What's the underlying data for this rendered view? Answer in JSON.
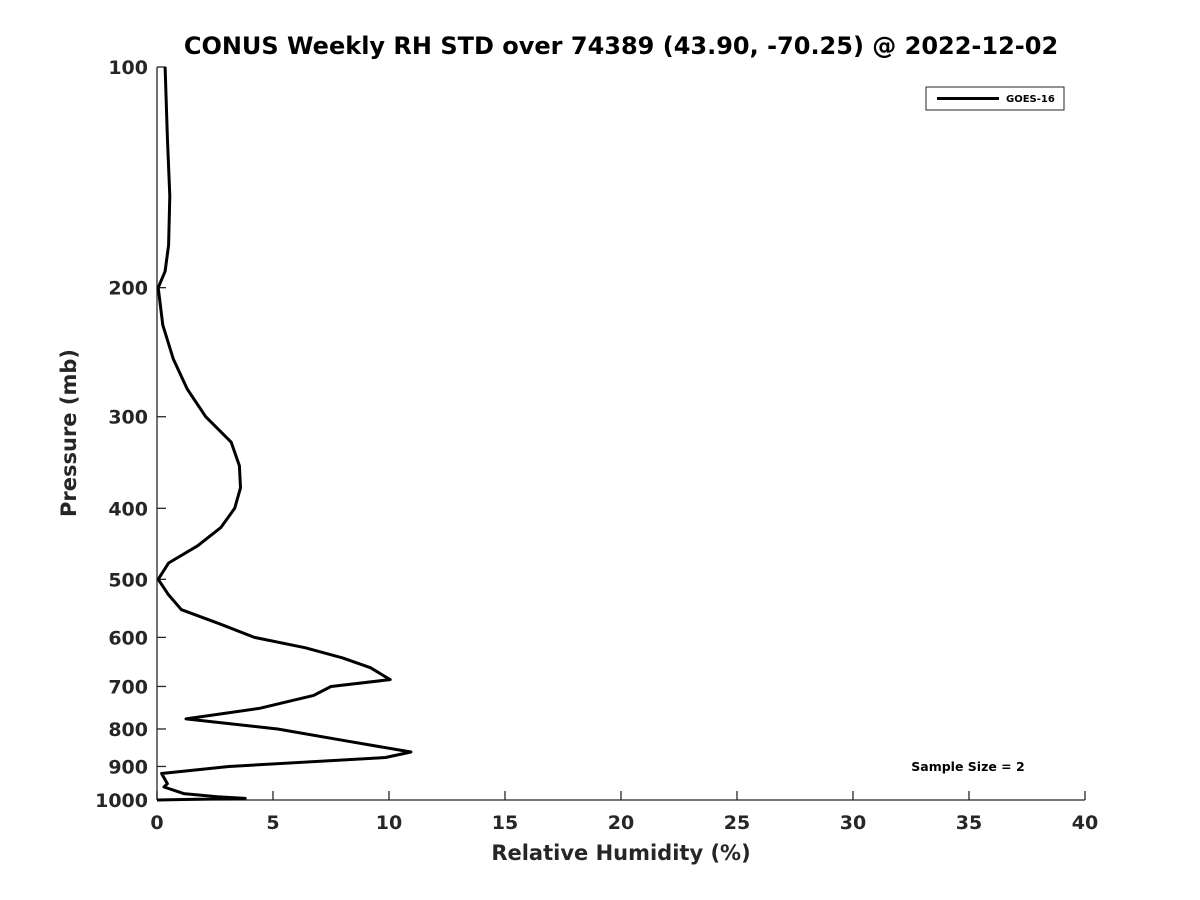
{
  "chart_data": {
    "type": "line",
    "title": "CONUS Weekly RH STD over 74389 (43.90, -70.25) @ 2022-12-02",
    "xlabel": "Relative Humidity (%)",
    "ylabel": "Pressure (mb)",
    "xlim": [
      0,
      40
    ],
    "ylim": [
      100,
      1000
    ],
    "y_scale": "log",
    "y_reversed": true,
    "x_ticks": [
      0,
      5,
      10,
      15,
      20,
      25,
      30,
      35,
      40
    ],
    "y_ticks": [
      100,
      200,
      300,
      400,
      500,
      600,
      700,
      800,
      900,
      1000
    ],
    "grid": false,
    "legend_position": "top-right",
    "line_color": "#000000",
    "series": [
      {
        "name": "GOES-16",
        "points": [
          [
            0.35,
            100
          ],
          [
            0.45,
            125
          ],
          [
            0.55,
            150
          ],
          [
            0.5,
            175
          ],
          [
            0.35,
            190
          ],
          [
            0.05,
            200
          ],
          [
            0.25,
            225
          ],
          [
            0.7,
            250
          ],
          [
            1.3,
            275
          ],
          [
            2.1,
            300
          ],
          [
            3.2,
            325
          ],
          [
            3.55,
            350
          ],
          [
            3.6,
            375
          ],
          [
            3.35,
            400
          ],
          [
            2.75,
            425
          ],
          [
            1.75,
            450
          ],
          [
            0.5,
            475
          ],
          [
            0.05,
            500
          ],
          [
            0.5,
            525
          ],
          [
            1.05,
            550
          ],
          [
            2.7,
            575
          ],
          [
            4.2,
            600
          ],
          [
            6.4,
            620
          ],
          [
            8.0,
            640
          ],
          [
            9.2,
            660
          ],
          [
            10.05,
            685
          ],
          [
            7.5,
            700
          ],
          [
            6.75,
            720
          ],
          [
            4.4,
            750
          ],
          [
            1.25,
            775
          ],
          [
            5.2,
            800
          ],
          [
            8.1,
            830
          ],
          [
            10.95,
            860
          ],
          [
            9.85,
            875
          ],
          [
            3.1,
            900
          ],
          [
            0.2,
            920
          ],
          [
            0.45,
            950
          ],
          [
            0.3,
            960
          ],
          [
            1.15,
            980
          ],
          [
            2.6,
            990
          ],
          [
            3.8,
            995
          ],
          [
            0.0,
            1000
          ]
        ]
      }
    ],
    "annotation": "Sample Size = 2"
  }
}
